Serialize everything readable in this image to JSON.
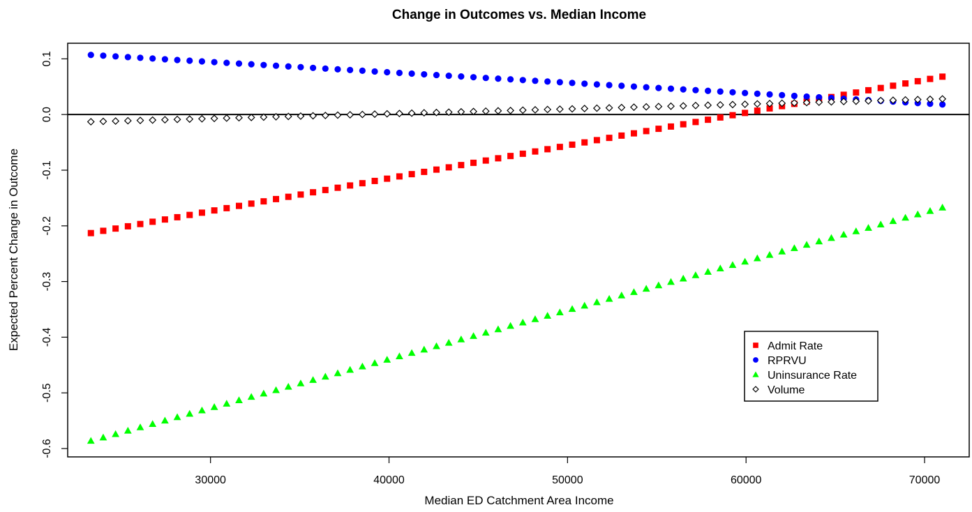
{
  "chart_data": {
    "type": "scatter",
    "title": "Change in Outcomes vs. Median Income",
    "xlabel": "Median ED Catchment Area Income",
    "ylabel": "Expected Percent Change in Outcome",
    "xlim": [
      22000,
      72500
    ],
    "ylim": [
      -0.615,
      0.128
    ],
    "x_ticks": [
      30000,
      40000,
      50000,
      60000,
      70000
    ],
    "y_ticks": [
      -0.6,
      -0.5,
      -0.4,
      -0.3,
      -0.2,
      -0.1,
      0.0,
      0.1
    ],
    "x_tick_labels": [
      "30000",
      "40000",
      "50000",
      "60000",
      "70000"
    ],
    "y_tick_labels": [
      "-0.6",
      "-0.5",
      "-0.4",
      "-0.3",
      "-0.2",
      "-0.1",
      "0.0",
      "0.1"
    ],
    "reference_line": {
      "y": 0
    },
    "grid": false,
    "legend_position": "bottom-right",
    "x_start": 23300,
    "x_end": 71000,
    "n_points": 70,
    "series": [
      {
        "name": "Admit Rate",
        "marker": "square",
        "color": "#ff0000",
        "y_start": -0.213,
        "y_end": 0.068
      },
      {
        "name": "RPRVU",
        "marker": "circle",
        "color": "#0000ff",
        "y_start": 0.107,
        "y_end": 0.018
      },
      {
        "name": "Uninsurance Rate",
        "marker": "triangle",
        "color": "#00ff00",
        "y_start": -0.586,
        "y_end": -0.167
      },
      {
        "name": "Volume",
        "marker": "open-diamond",
        "color": "#000000",
        "y_start": -0.013,
        "y_end": 0.028
      }
    ]
  }
}
